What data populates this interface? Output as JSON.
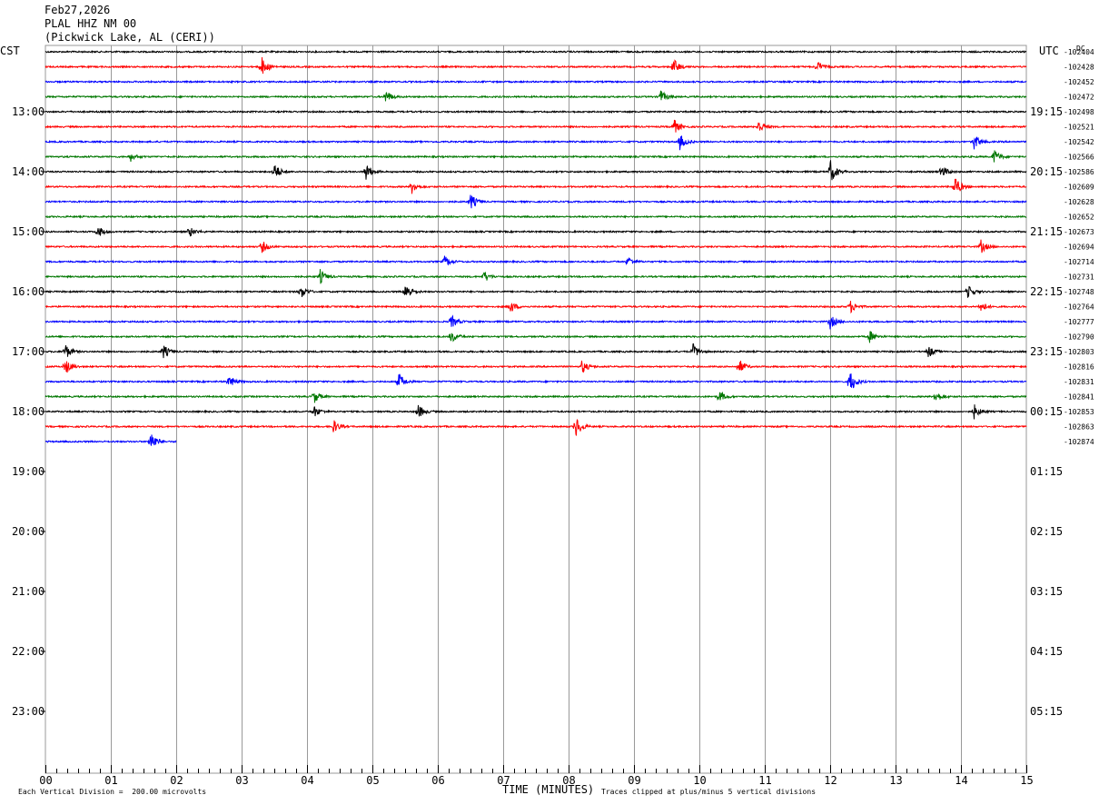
{
  "header": {
    "date": "Feb27,2026",
    "station": "PLAL HHZ NM 00",
    "location": "(Pickwick Lake, AL (CERI))"
  },
  "left_tz": "CST",
  "right_tz": "UTC",
  "dc_label": "DC",
  "footer": {
    "scale_note": "Each Vertical Division =  200.00 microvolts",
    "xlabel": "TIME (MINUTES)",
    "clip_note": "Traces clipped at plus/minus 5 vertical divisions"
  },
  "colors": {
    "black": "#000000",
    "red": "#ff0000",
    "blue": "#0000ff",
    "green": "#007700",
    "grid": "#999999"
  },
  "chart_data": {
    "type": "line",
    "title": "PLAL HHZ NM 00",
    "xlabel": "TIME (MINUTES)",
    "ylabel": "",
    "xlim": [
      0,
      15
    ],
    "x_ticks": [
      "00",
      "01",
      "02",
      "03",
      "04",
      "05",
      "06",
      "07",
      "08",
      "09",
      "10",
      "11",
      "12",
      "13",
      "14",
      "15"
    ],
    "left_hour_labels": [
      "13:00",
      "14:00",
      "15:00",
      "16:00",
      "17:00",
      "18:00",
      "19:00",
      "20:00",
      "21:00",
      "22:00",
      "23:00"
    ],
    "right_hour_labels": [
      "19:15",
      "20:15",
      "21:15",
      "22:15",
      "23:15",
      "00:15",
      "01:15",
      "02:15",
      "03:15",
      "04:15",
      "05:15"
    ],
    "trace_colors": [
      "#000000",
      "#ff0000",
      "#0000ff",
      "#007700"
    ],
    "dc_offsets": [
      "-102404",
      "-102428",
      "-102452",
      "-102472",
      "-102498",
      "-102521",
      "-102542",
      "-102566",
      "-102586",
      "-102609",
      "-102628",
      "-102652",
      "-102673",
      "-102694",
      "-102714",
      "-102731",
      "-102748",
      "-102764",
      "-102777",
      "-102790",
      "-102803",
      "-102816",
      "-102831",
      "-102841",
      "-102853",
      "-102863",
      "-102874"
    ],
    "last_trace_end_minute": 2.0,
    "events": [
      {
        "trace": 1,
        "minute": 3.3,
        "amp": 12
      },
      {
        "trace": 1,
        "minute": 9.6,
        "amp": 10
      },
      {
        "trace": 1,
        "minute": 11.8,
        "amp": 6
      },
      {
        "trace": 3,
        "minute": 5.2,
        "amp": 8
      },
      {
        "trace": 3,
        "minute": 9.4,
        "amp": 8
      },
      {
        "trace": 5,
        "minute": 9.6,
        "amp": 10
      },
      {
        "trace": 5,
        "minute": 10.9,
        "amp": 8
      },
      {
        "trace": 6,
        "minute": 9.7,
        "amp": 9
      },
      {
        "trace": 6,
        "minute": 14.2,
        "amp": 9
      },
      {
        "trace": 7,
        "minute": 1.3,
        "amp": 5
      },
      {
        "trace": 7,
        "minute": 14.5,
        "amp": 9
      },
      {
        "trace": 8,
        "minute": 3.5,
        "amp": 10
      },
      {
        "trace": 8,
        "minute": 4.9,
        "amp": 10
      },
      {
        "trace": 8,
        "minute": 12.0,
        "amp": 14
      },
      {
        "trace": 8,
        "minute": 13.7,
        "amp": 8
      },
      {
        "trace": 9,
        "minute": 5.6,
        "amp": 8
      },
      {
        "trace": 9,
        "minute": 13.9,
        "amp": 14
      },
      {
        "trace": 10,
        "minute": 6.5,
        "amp": 9
      },
      {
        "trace": 12,
        "minute": 0.8,
        "amp": 7
      },
      {
        "trace": 12,
        "minute": 2.2,
        "amp": 6
      },
      {
        "trace": 13,
        "minute": 3.3,
        "amp": 8
      },
      {
        "trace": 13,
        "minute": 14.3,
        "amp": 8
      },
      {
        "trace": 14,
        "minute": 6.1,
        "amp": 7
      },
      {
        "trace": 14,
        "minute": 8.9,
        "amp": 6
      },
      {
        "trace": 15,
        "minute": 6.7,
        "amp": 7
      },
      {
        "trace": 15,
        "minute": 4.2,
        "amp": 8
      },
      {
        "trace": 16,
        "minute": 3.9,
        "amp": 8
      },
      {
        "trace": 16,
        "minute": 5.5,
        "amp": 12
      },
      {
        "trace": 16,
        "minute": 14.1,
        "amp": 8
      },
      {
        "trace": 17,
        "minute": 7.1,
        "amp": 8
      },
      {
        "trace": 17,
        "minute": 12.3,
        "amp": 8
      },
      {
        "trace": 17,
        "minute": 14.3,
        "amp": 7
      },
      {
        "trace": 18,
        "minute": 6.2,
        "amp": 8
      },
      {
        "trace": 18,
        "minute": 12.0,
        "amp": 8
      },
      {
        "trace": 19,
        "minute": 6.2,
        "amp": 8
      },
      {
        "trace": 19,
        "minute": 12.6,
        "amp": 7
      },
      {
        "trace": 20,
        "minute": 0.3,
        "amp": 9
      },
      {
        "trace": 20,
        "minute": 1.8,
        "amp": 8
      },
      {
        "trace": 20,
        "minute": 9.9,
        "amp": 9
      },
      {
        "trace": 20,
        "minute": 13.5,
        "amp": 7
      },
      {
        "trace": 21,
        "minute": 0.3,
        "amp": 10
      },
      {
        "trace": 21,
        "minute": 8.2,
        "amp": 8
      },
      {
        "trace": 21,
        "minute": 10.6,
        "amp": 9
      },
      {
        "trace": 22,
        "minute": 2.8,
        "amp": 8
      },
      {
        "trace": 22,
        "minute": 5.4,
        "amp": 10
      },
      {
        "trace": 22,
        "minute": 12.3,
        "amp": 14
      },
      {
        "trace": 23,
        "minute": 4.1,
        "amp": 8
      },
      {
        "trace": 23,
        "minute": 10.3,
        "amp": 7
      },
      {
        "trace": 23,
        "minute": 13.6,
        "amp": 8
      },
      {
        "trace": 24,
        "minute": 4.1,
        "amp": 7
      },
      {
        "trace": 24,
        "minute": 5.7,
        "amp": 8
      },
      {
        "trace": 24,
        "minute": 14.2,
        "amp": 8
      },
      {
        "trace": 25,
        "minute": 4.4,
        "amp": 8
      },
      {
        "trace": 25,
        "minute": 8.1,
        "amp": 14
      },
      {
        "trace": 26,
        "minute": 1.6,
        "amp": 14
      }
    ]
  }
}
